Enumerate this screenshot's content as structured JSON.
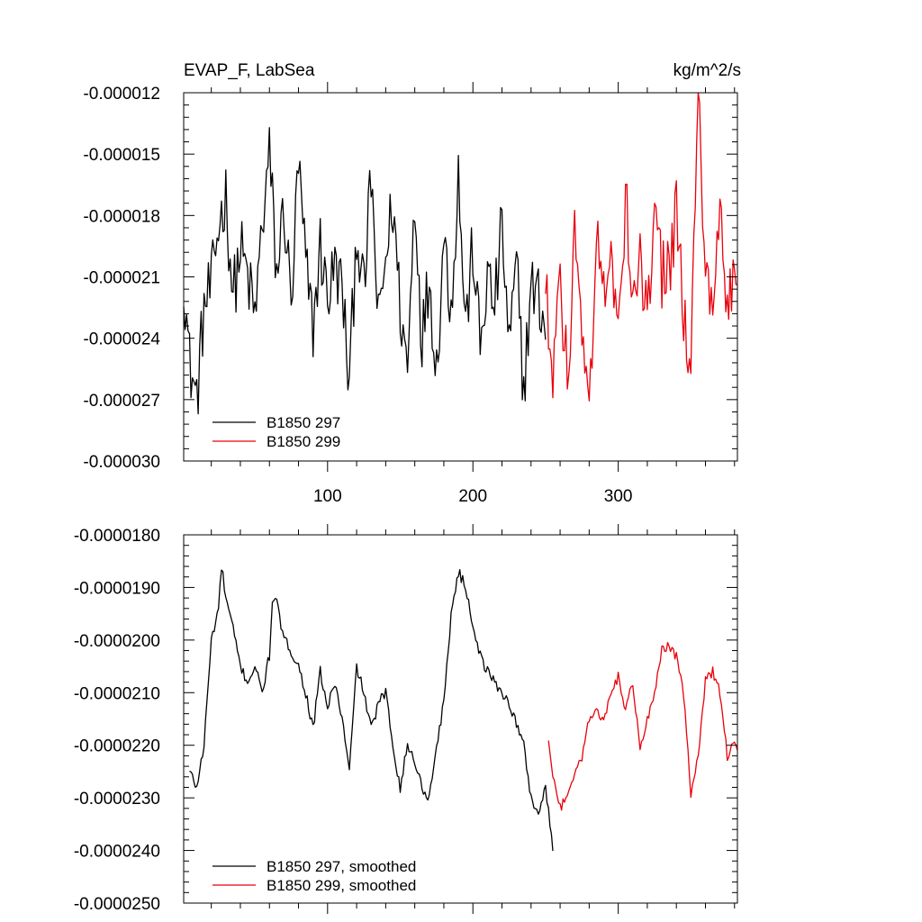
{
  "chart_data": [
    {
      "type": "line",
      "title": "EVAP_F, LabSea",
      "units": "kg/m^2/s",
      "xlim": [
        1,
        382
      ],
      "ylim": [
        -3e-05,
        -1.2e-05
      ],
      "x_ticks": [
        100,
        200,
        300
      ],
      "x_tick_labels": [
        "100",
        "200",
        "300"
      ],
      "y_ticks": [
        -1.2e-05,
        -1.5e-05,
        -1.8e-05,
        -2.1e-05,
        -2.4e-05,
        -2.7e-05,
        -3e-05
      ],
      "y_tick_labels": [
        "-0.000012",
        "-0.000015",
        "-0.000018",
        "-0.000021",
        "-0.000024",
        "-0.000027",
        "-0.000030"
      ],
      "legend": [
        "B1850 297",
        "B1850 299"
      ],
      "legend_position": "bottom-left",
      "series": [
        {
          "name": "B1850 297",
          "color": "#000000",
          "x_start": 1,
          "x_end": 250,
          "anchors": [
            [
              1,
              -2.08e-05
            ],
            [
              5,
              -2.52e-05
            ],
            [
              10,
              -2.7e-05
            ],
            [
              15,
              -2.25e-05
            ],
            [
              20,
              -2.15e-05
            ],
            [
              25,
              -1.85e-05
            ],
            [
              30,
              -1.7e-05
            ],
            [
              35,
              -2.2e-05
            ],
            [
              40,
              -1.96e-05
            ],
            [
              45,
              -2.1e-05
            ],
            [
              50,
              -2.3e-05
            ],
            [
              55,
              -1.85e-05
            ],
            [
              60,
              -1.5e-05
            ],
            [
              65,
              -2.1e-05
            ],
            [
              70,
              -1.75e-05
            ],
            [
              75,
              -2.25e-05
            ],
            [
              80,
              -1.55e-05
            ],
            [
              85,
              -2.05e-05
            ],
            [
              90,
              -2.35e-05
            ],
            [
              95,
              -1.95e-05
            ],
            [
              100,
              -2.2e-05
            ],
            [
              105,
              -2.05e-05
            ],
            [
              110,
              -2.15e-05
            ],
            [
              115,
              -2.65e-05
            ],
            [
              120,
              -1.85e-05
            ],
            [
              125,
              -2.2e-05
            ],
            [
              130,
              -1.6e-05
            ],
            [
              135,
              -2.35e-05
            ],
            [
              140,
              -2e-05
            ],
            [
              145,
              -1.75e-05
            ],
            [
              150,
              -2.25e-05
            ],
            [
              155,
              -2.55e-05
            ],
            [
              160,
              -1.7e-05
            ],
            [
              165,
              -2.4e-05
            ],
            [
              170,
              -2.1e-05
            ],
            [
              175,
              -2.55e-05
            ],
            [
              180,
              -1.9e-05
            ],
            [
              185,
              -2.25e-05
            ],
            [
              190,
              -1.6e-05
            ],
            [
              195,
              -2.35e-05
            ],
            [
              200,
              -1.95e-05
            ],
            [
              205,
              -2.45e-05
            ],
            [
              210,
              -2.1e-05
            ],
            [
              215,
              -2.25e-05
            ],
            [
              220,
              -1.85e-05
            ],
            [
              225,
              -2.45e-05
            ],
            [
              230,
              -2.05e-05
            ],
            [
              235,
              -2.65e-05
            ],
            [
              240,
              -2.15e-05
            ],
            [
              245,
              -2.2e-05
            ],
            [
              250,
              -2.35e-05
            ]
          ]
        },
        {
          "name": "B1850 299",
          "color": "#e8000b",
          "x_start": 250,
          "x_end": 382,
          "anchors": [
            [
              250,
              -2.15e-05
            ],
            [
              255,
              -2.55e-05
            ],
            [
              260,
              -2.1e-05
            ],
            [
              265,
              -2.6e-05
            ],
            [
              270,
              -1.9e-05
            ],
            [
              275,
              -2.35e-05
            ],
            [
              280,
              -2.75e-05
            ],
            [
              285,
              -1.9e-05
            ],
            [
              290,
              -2.2e-05
            ],
            [
              295,
              -1.85e-05
            ],
            [
              300,
              -2.45e-05
            ],
            [
              305,
              -1.7e-05
            ],
            [
              310,
              -2.2e-05
            ],
            [
              315,
              -1.95e-05
            ],
            [
              320,
              -2.35e-05
            ],
            [
              325,
              -1.65e-05
            ],
            [
              330,
              -2.1e-05
            ],
            [
              335,
              -2.05e-05
            ],
            [
              340,
              -1.8e-05
            ],
            [
              345,
              -2.25e-05
            ],
            [
              350,
              -2.55e-05
            ],
            [
              355,
              -1.25e-05
            ],
            [
              360,
              -2.1e-05
            ],
            [
              365,
              -2.35e-05
            ],
            [
              370,
              -1.75e-05
            ],
            [
              375,
              -2.25e-05
            ],
            [
              380,
              -2.1e-05
            ],
            [
              382,
              -2.15e-05
            ]
          ]
        }
      ]
    },
    {
      "type": "line",
      "title": "",
      "xlim": [
        1,
        382
      ],
      "ylim": [
        -2.5e-05,
        -1.8e-05
      ],
      "x_ticks": [
        100,
        200,
        300
      ],
      "x_tick_labels": [
        "",
        "",
        ""
      ],
      "y_ticks": [
        -1.8e-05,
        -1.9e-05,
        -2e-05,
        -2.1e-05,
        -2.2e-05,
        -2.3e-05,
        -2.4e-05,
        -2.5e-05
      ],
      "y_tick_labels": [
        "-0.0000180",
        "-0.0000190",
        "-0.0000200",
        "-0.0000210",
        "-0.0000220",
        "-0.0000230",
        "-0.0000240",
        "-0.0000250"
      ],
      "legend": [
        "B1850 297, smoothed",
        "B1850 299, smoothed"
      ],
      "legend_position": "bottom-left",
      "series": [
        {
          "name": "B1850 297, smoothed",
          "color": "#000000",
          "x_start": 5,
          "x_end": 255,
          "anchors": [
            [
              5,
              -2.25e-05
            ],
            [
              10,
              -2.28e-05
            ],
            [
              15,
              -2.2e-05
            ],
            [
              20,
              -2e-05
            ],
            [
              25,
              -1.94e-05
            ],
            [
              27,
              -1.86e-05
            ],
            [
              30,
              -1.92e-05
            ],
            [
              35,
              -1.98e-05
            ],
            [
              40,
              -2.05e-05
            ],
            [
              45,
              -2.08e-05
            ],
            [
              50,
              -2.05e-05
            ],
            [
              55,
              -2.1e-05
            ],
            [
              60,
              -2.03e-05
            ],
            [
              62,
              -1.92e-05
            ],
            [
              65,
              -1.93e-05
            ],
            [
              70,
              -2e-05
            ],
            [
              75,
              -2.02e-05
            ],
            [
              80,
              -2.05e-05
            ],
            [
              85,
              -2.1e-05
            ],
            [
              90,
              -2.17e-05
            ],
            [
              95,
              -2.06e-05
            ],
            [
              100,
              -2.13e-05
            ],
            [
              105,
              -2.08e-05
            ],
            [
              110,
              -2.15e-05
            ],
            [
              115,
              -2.25e-05
            ],
            [
              120,
              -2.05e-05
            ],
            [
              125,
              -2.1e-05
            ],
            [
              130,
              -2.17e-05
            ],
            [
              135,
              -2.12e-05
            ],
            [
              140,
              -2.1e-05
            ],
            [
              145,
              -2.2e-05
            ],
            [
              150,
              -2.28e-05
            ],
            [
              155,
              -2.2e-05
            ],
            [
              160,
              -2.23e-05
            ],
            [
              165,
              -2.28e-05
            ],
            [
              170,
              -2.3e-05
            ],
            [
              175,
              -2.2e-05
            ],
            [
              180,
              -2.12e-05
            ],
            [
              185,
              -1.95e-05
            ],
            [
              190,
              -1.87e-05
            ],
            [
              195,
              -1.9e-05
            ],
            [
              200,
              -1.97e-05
            ],
            [
              205,
              -2.03e-05
            ],
            [
              210,
              -2.06e-05
            ],
            [
              215,
              -2.08e-05
            ],
            [
              220,
              -2.1e-05
            ],
            [
              225,
              -2.12e-05
            ],
            [
              230,
              -2.16e-05
            ],
            [
              235,
              -2.2e-05
            ],
            [
              240,
              -2.3e-05
            ],
            [
              245,
              -2.33e-05
            ],
            [
              250,
              -2.28e-05
            ],
            [
              255,
              -2.4e-05
            ]
          ]
        },
        {
          "name": "B1850 299, smoothed",
          "color": "#e8000b",
          "x_start": 252,
          "x_end": 382,
          "anchors": [
            [
              252,
              -2.2e-05
            ],
            [
              256,
              -2.27e-05
            ],
            [
              260,
              -2.32e-05
            ],
            [
              265,
              -2.3e-05
            ],
            [
              270,
              -2.25e-05
            ],
            [
              275,
              -2.22e-05
            ],
            [
              280,
              -2.15e-05
            ],
            [
              285,
              -2.13e-05
            ],
            [
              290,
              -2.15e-05
            ],
            [
              295,
              -2.11e-05
            ],
            [
              300,
              -2.07e-05
            ],
            [
              305,
              -2.13e-05
            ],
            [
              310,
              -2.08e-05
            ],
            [
              315,
              -2.2e-05
            ],
            [
              320,
              -2.15e-05
            ],
            [
              325,
              -2.1e-05
            ],
            [
              330,
              -2.02e-05
            ],
            [
              335,
              -2.01e-05
            ],
            [
              340,
              -2.03e-05
            ],
            [
              345,
              -2.1e-05
            ],
            [
              350,
              -2.29e-05
            ],
            [
              355,
              -2.22e-05
            ],
            [
              360,
              -2.08e-05
            ],
            [
              365,
              -2.06e-05
            ],
            [
              370,
              -2.1e-05
            ],
            [
              375,
              -2.22e-05
            ],
            [
              380,
              -2.19e-05
            ],
            [
              382,
              -2.21e-05
            ]
          ]
        }
      ]
    }
  ]
}
